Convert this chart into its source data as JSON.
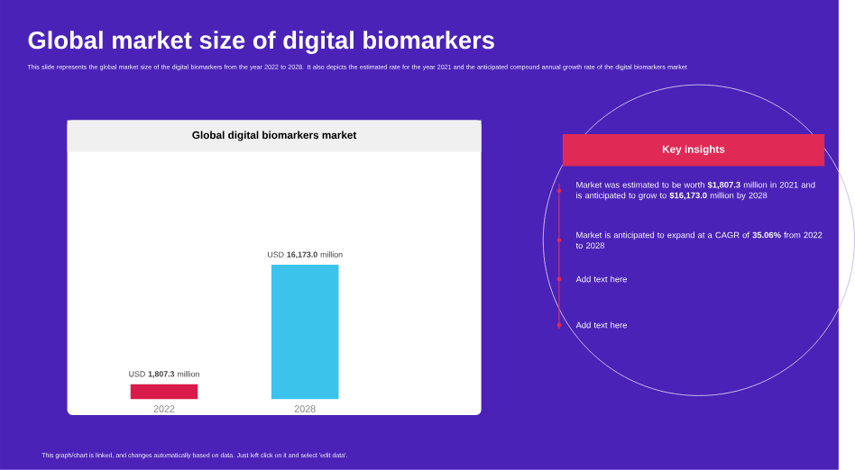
{
  "chart_data": {
    "type": "bar",
    "title": "Global digital biomarkers market",
    "categories": [
      "2022",
      "2028"
    ],
    "values": [
      1807.3,
      16173.0
    ],
    "colors": [
      "#d81b4a",
      "#3cc3ec"
    ],
    "value_labels": [
      "USD **1,807.3** million",
      "USD **16,173.0** million"
    ],
    "tick_labels": "x",
    "annotations": [
      "Global market size of digital biomarkers",
      "This slide represents the global market size of the digital biomarkers from the year 2022 to 2028. It also depicts the estimated rate for the year 2021 and the anticipated compound annual growth rate of the digital biomarkers market",
      "Key insights",
      "Market was estimated to be worth **$1,807.3** million in 2021 and is anticipated to grow to **$16,173.0** million by 2028",
      "Market is anticipated to expand at a CAGR of **35.06%** from 2022 to 2028",
      "Add text here",
      "Add text here",
      "This graph/chart is linked, and changes automatically based on data. Just left click on it and select 'edit data'."
    ]
  }
}
